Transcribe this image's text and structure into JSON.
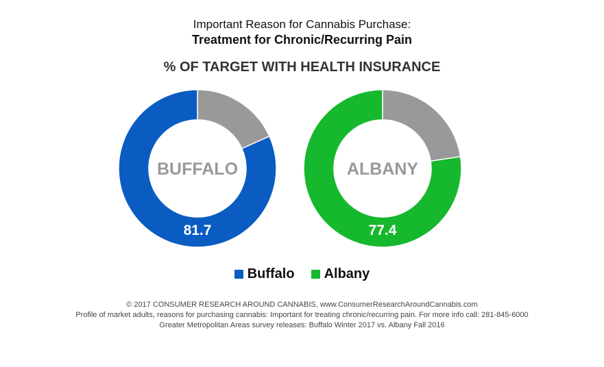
{
  "title_line1": "Important Reason for Cannabis Purchase:",
  "title_line2": "Treatment for Chronic/Recurring Pain",
  "subtitle": "% OF TARGET WITH HEALTH INSURANCE",
  "colors": {
    "buffalo": "#0a5cc2",
    "albany": "#16b82d",
    "remainder": "#999999",
    "center_label": "#999999"
  },
  "chart_data": [
    {
      "type": "pie",
      "variant": "donut",
      "center_label": "BUFFALO",
      "series": [
        {
          "name": "Buffalo",
          "values": [
            81.7,
            18.3
          ]
        }
      ],
      "data_label": "81.7",
      "color": "#0a5cc2"
    },
    {
      "type": "pie",
      "variant": "donut",
      "center_label": "ALBANY",
      "series": [
        {
          "name": "Albany",
          "values": [
            77.4,
            22.6
          ]
        }
      ],
      "data_label": "77.4",
      "color": "#16b82d"
    }
  ],
  "legend": [
    {
      "label": "Buffalo",
      "color": "#0a5cc2"
    },
    {
      "label": "Albany",
      "color": "#16b82d"
    }
  ],
  "footer": [
    "© 2017 CONSUMER RESEARCH AROUND CANNABIS, www.ConsumerResearchAroundCannabis.com",
    "Profile of market adults, reasons for purchasing cannabis: Important for treating chronic/recurring pain. For more info call: 281-845-6000",
    "Greater Metropolitan Areas survey releases: Buffalo Winter 2017 vs. Albany Fall 2016"
  ]
}
